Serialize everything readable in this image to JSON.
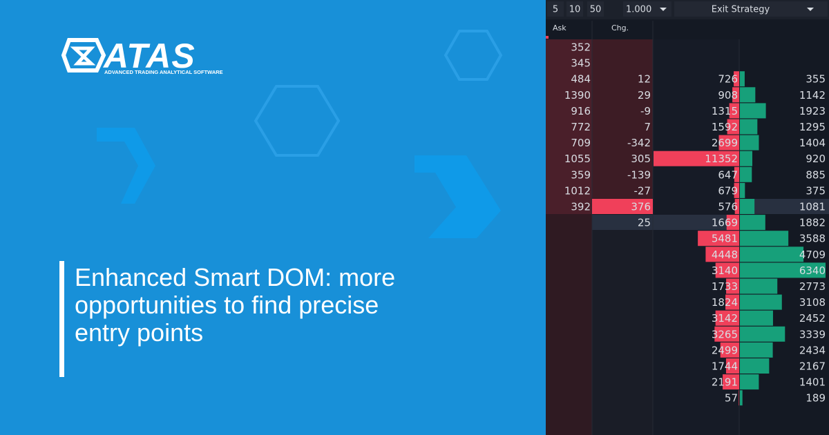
{
  "logo": {
    "name": "ATAS",
    "tagline": "ADVANCED TRADING ANALYTICAL SOFTWARE"
  },
  "headline": {
    "lines": [
      "Enhanced Smart DOM: more",
      "opportunities to find precise",
      "entry points"
    ]
  },
  "dom": {
    "toolbar": {
      "buttons": [
        "5",
        "10",
        "50"
      ],
      "size": "1.000",
      "strategy": "Exit Strategy"
    },
    "headers": [
      "Ask",
      "Chg."
    ],
    "rows": [
      [
        352,
        null,
        null,
        null
      ],
      [
        345,
        null,
        null,
        null
      ],
      [
        484,
        12,
        726,
        355
      ],
      [
        1390,
        29,
        908,
        1142
      ],
      [
        916,
        -9,
        1315,
        1923
      ],
      [
        772,
        7,
        1592,
        1295
      ],
      [
        709,
        -342,
        2699,
        1404
      ],
      [
        1055,
        305,
        11352,
        920
      ],
      [
        359,
        -139,
        647,
        885
      ],
      [
        1012,
        -27,
        679,
        375
      ],
      [
        392,
        376,
        576,
        1081
      ],
      [
        null,
        25,
        1669,
        1882
      ],
      [
        null,
        null,
        5481,
        3588
      ],
      [
        null,
        null,
        4448,
        4709
      ],
      [
        null,
        null,
        3140,
        6340
      ],
      [
        null,
        null,
        1733,
        2773
      ],
      [
        null,
        null,
        1824,
        3108
      ],
      [
        null,
        null,
        3142,
        2452
      ],
      [
        null,
        null,
        3265,
        3339
      ],
      [
        null,
        null,
        2499,
        2434
      ],
      [
        null,
        null,
        1744,
        2167
      ],
      [
        null,
        null,
        2191,
        1401
      ],
      [
        null,
        null,
        57,
        189
      ]
    ]
  }
}
